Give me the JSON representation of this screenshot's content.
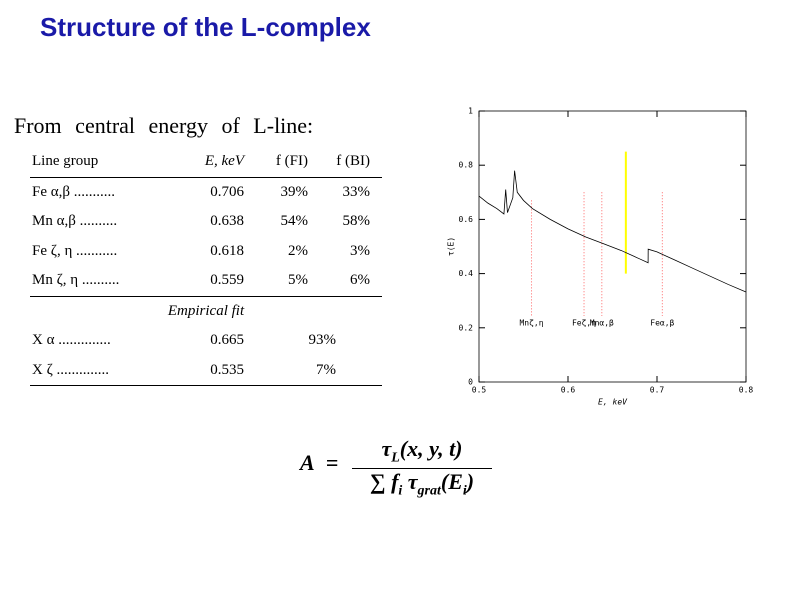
{
  "title": "Structure of the L-complex",
  "subtitle": "From central energy of L-line:",
  "table": {
    "header": [
      "Line group",
      "E, keV",
      "f (FI)",
      "f (BI)"
    ],
    "rows": [
      [
        "Fe α,β ...........",
        "0.706",
        "39%",
        "33%"
      ],
      [
        "Mn α,β ..........",
        "0.638",
        "54%",
        "58%"
      ],
      [
        "Fe ζ, η ...........",
        "0.618",
        "2%",
        "3%"
      ],
      [
        "Mn ζ, η ..........",
        "0.559",
        "5%",
        "6%"
      ]
    ],
    "section": "Empirical fit",
    "fit_rows": [
      [
        "X α ..............",
        "0.665",
        "93%"
      ],
      [
        "X ζ ..............",
        "0.535",
        "7%"
      ]
    ]
  },
  "chart_data": {
    "type": "line",
    "xlabel": "E, keV",
    "ylabel": "τ(E)",
    "x": [
      0.5,
      0.51,
      0.52,
      0.528,
      0.53,
      0.532,
      0.538,
      0.54,
      0.543,
      0.55,
      0.56,
      0.58,
      0.6,
      0.62,
      0.64,
      0.66,
      0.68,
      0.69,
      0.6901,
      0.7,
      0.72,
      0.74,
      0.76,
      0.78,
      0.8
    ],
    "values": [
      0.686,
      0.66,
      0.64,
      0.62,
      0.71,
      0.625,
      0.68,
      0.78,
      0.7,
      0.67,
      0.64,
      0.6,
      0.565,
      0.535,
      0.51,
      0.485,
      0.455,
      0.44,
      0.49,
      0.48,
      0.45,
      0.42,
      0.39,
      0.36,
      0.332
    ],
    "color": "#000000",
    "xlim": [
      0.5,
      0.8
    ],
    "xticks": [
      0.5,
      0.6,
      0.7,
      0.8
    ],
    "ylim": [
      0,
      1
    ],
    "yticks": [
      0,
      0.2,
      0.4,
      0.6,
      0.8,
      1
    ],
    "markers": [
      {
        "label": "Mnζ,η",
        "x": 0.559,
        "top": 0.67,
        "color": "#ff6666"
      },
      {
        "label": "Feζ,η",
        "x": 0.618,
        "top": 0.7,
        "color": "#ff6666"
      },
      {
        "label": "Mnα,β",
        "x": 0.638,
        "top": 0.7,
        "color": "#ff6666"
      },
      {
        "label": "Feα,β",
        "x": 0.706,
        "top": 0.7,
        "color": "#ff6666"
      }
    ],
    "fit_line": {
      "x": 0.665,
      "y_range": [
        0.4,
        0.85
      ],
      "color": "#ffff00"
    }
  },
  "formula": {
    "lhs": "A",
    "eq": "=",
    "num_tau": "τ",
    "num_sub": "L",
    "num_args": "(x, y, t)",
    "den_sum": "∑",
    "den_f": "f",
    "den_fsub": "i",
    "den_tau": "τ",
    "den_tsub": "grat",
    "den_arg1": "(E",
    "den_asub": "i",
    "den_arg2": ")"
  }
}
